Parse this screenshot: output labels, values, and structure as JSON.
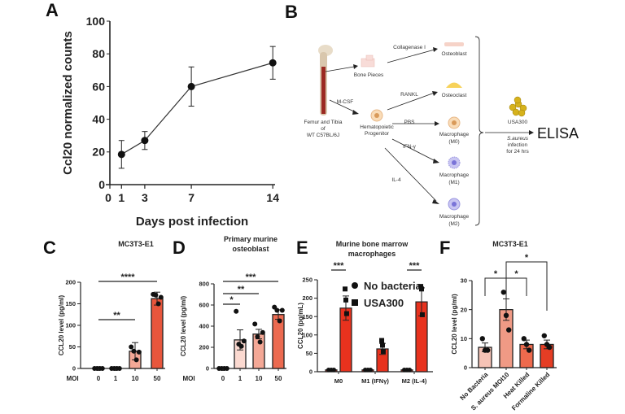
{
  "figure": {
    "panel_labels": {
      "A": "A",
      "B": "B",
      "C": "C",
      "D": "D",
      "E": "E",
      "F": "F"
    },
    "diagram": {
      "source": [
        "Femur and Tibia",
        "of",
        "WT C57BL/6J"
      ],
      "bone_pieces": "Bone Pieces",
      "collagenase": "Collagenase I",
      "mcsf": "M-CSF",
      "progenitor": [
        "Hematopoietic",
        "Progenitor"
      ],
      "rankl": "RANKL",
      "pbs": "PBS",
      "ifn": "IFN-γ",
      "il4": "IL-4",
      "osteoblast": "Osteoblast",
      "osteoclast": "Osteoclast",
      "m0": [
        "Macrophage",
        "(M0)"
      ],
      "m1": [
        "Macrophage",
        "(M1)"
      ],
      "m2": [
        "Macrophage",
        "(M2)"
      ],
      "bacteria": "USA300",
      "infection": [
        "S.aureus",
        "infection",
        "for 24 hrs"
      ],
      "readout": "ELISA"
    }
  },
  "chart_data": [
    {
      "panel": "A",
      "type": "line",
      "title": "",
      "xlabel": "Days post infection",
      "ylabel": "Ccl20 normalized counts",
      "x": [
        1,
        3,
        7,
        14
      ],
      "y": [
        18.5,
        27,
        60,
        74.5
      ],
      "error": [
        8.5,
        5.5,
        12,
        10
      ],
      "xticks": [
        "0",
        "1",
        "3",
        "7",
        "14"
      ],
      "xtick_values": [
        0,
        1,
        3,
        7,
        14
      ],
      "yticks": [
        "0",
        "20",
        "40",
        "60",
        "80",
        "100"
      ],
      "ylim": [
        0,
        100
      ],
      "color": "#111111"
    },
    {
      "panel": "C",
      "type": "bar",
      "title": "MC3T3-E1",
      "xlabel_prefix": "MOI",
      "ylabel": "CCL20 level (pg/ml)",
      "categories": [
        "0",
        "1",
        "10",
        "50"
      ],
      "values": [
        0,
        0,
        40,
        162
      ],
      "error": [
        0,
        0,
        20,
        15
      ],
      "points": [
        [
          0,
          0,
          0,
          0
        ],
        [
          0,
          0,
          0,
          0
        ],
        [
          50,
          40,
          20,
          38
        ],
        [
          172,
          170,
          150,
          165
        ]
      ],
      "colors": [
        "#ffffff",
        "#ffffff",
        "#f4a896",
        "#e8563c"
      ],
      "yticks": [
        "0",
        "50",
        "100",
        "150",
        "200"
      ],
      "ylim": [
        0,
        200
      ],
      "significance": [
        {
          "from": 0,
          "to": 3,
          "label": "****"
        },
        {
          "from": 0,
          "to": 2,
          "label": "**"
        }
      ]
    },
    {
      "panel": "D",
      "type": "bar",
      "title": [
        "Primary murine",
        "osteoblast"
      ],
      "xlabel_prefix": "MOI",
      "ylabel": "CCL20 level (pg/ml)",
      "categories": [
        "0",
        "1",
        "10",
        "50"
      ],
      "values": [
        0,
        270,
        325,
        510
      ],
      "error": [
        0,
        95,
        45,
        45
      ],
      "points": [
        [
          0,
          0,
          0,
          0
        ],
        [
          540,
          230,
          210,
          260
        ],
        [
          420,
          300,
          250,
          340
        ],
        [
          580,
          550,
          450,
          550
        ]
      ],
      "colors": [
        "#ffffff",
        "#fbd9d0",
        "#f4a896",
        "#ec6a50"
      ],
      "yticks": [
        "0",
        "200",
        "400",
        "600",
        "800"
      ],
      "ylim": [
        0,
        800
      ],
      "significance": [
        {
          "from": 0,
          "to": 3,
          "label": "***"
        },
        {
          "from": 0,
          "to": 2,
          "label": "**"
        },
        {
          "from": 0,
          "to": 1,
          "label": "*"
        }
      ]
    },
    {
      "panel": "E",
      "type": "bar",
      "title": [
        "Murine bone marrow",
        "macrophages"
      ],
      "ylabel": "CCL20 (pg/mL)",
      "categories": [
        "M0",
        "M1 (IFNγ)",
        "M2 (IL-4)"
      ],
      "series": [
        {
          "name": "No bacteria",
          "marker": "circle",
          "values": [
            5,
            5,
            5
          ],
          "error": [
            0,
            0,
            0
          ],
          "points": [
            [
              5,
              5,
              5
            ],
            [
              5,
              5,
              5
            ],
            [
              5,
              5,
              5
            ]
          ],
          "color": "#e8321e"
        },
        {
          "name": "USA300",
          "marker": "square",
          "values": [
            173,
            62,
            190
          ],
          "error": [
            33,
            15,
            38
          ],
          "points": [
            [
              225,
              195,
              158
            ],
            [
              85,
              72,
              55
            ],
            [
              232,
              225,
              155
            ]
          ],
          "color": "#e8321e"
        }
      ],
      "yticks": [
        "0",
        "50",
        "100",
        "150",
        "200",
        "250"
      ],
      "ylim": [
        0,
        250
      ],
      "legend": "top-right",
      "significance": [
        {
          "group": 0,
          "label": "***"
        },
        {
          "group": 2,
          "label": "***"
        }
      ]
    },
    {
      "panel": "F",
      "type": "bar",
      "title": "MC3T3-E1",
      "ylabel": "CCL20 level (pg/ml)",
      "categories": [
        "No Bacteria",
        "S. aureus MOI10",
        "Heat Killed",
        "Formaline Killed"
      ],
      "values": [
        7,
        20,
        8,
        8
      ],
      "error": [
        1.5,
        3.7,
        1.5,
        1.5
      ],
      "points": [
        [
          10,
          6,
          6
        ],
        [
          26,
          18,
          13
        ],
        [
          10,
          8,
          6
        ],
        [
          11,
          8,
          7
        ]
      ],
      "colors": [
        "#f6c3b6",
        "#f09a85",
        "#ee6a4d",
        "#e53d24"
      ],
      "yticks": [
        "0",
        "10",
        "20",
        "30"
      ],
      "ylim": [
        0,
        30
      ],
      "significance": [
        {
          "from": 0,
          "to": 1,
          "label": "*"
        },
        {
          "from": 1,
          "to": 2,
          "label": "*"
        },
        {
          "from": 1,
          "to": 3,
          "label": "*"
        }
      ]
    }
  ]
}
